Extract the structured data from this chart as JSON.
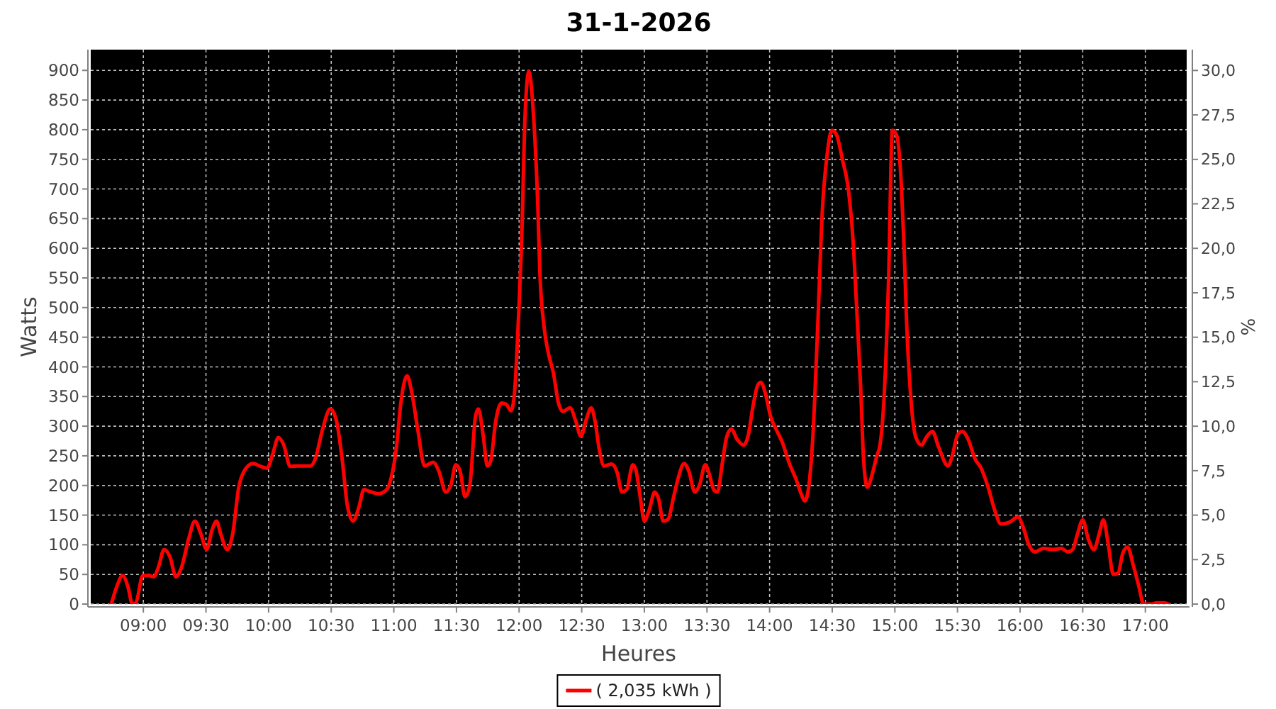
{
  "chart_data": {
    "type": "line",
    "title": "31-1-2026",
    "xlabel": "Heures",
    "ylabel": "Watts",
    "y2label": "%",
    "xlim": [
      8.58,
      17.33
    ],
    "xticks": [
      {
        "value": 9,
        "label": "09:00"
      },
      {
        "value": 9.5,
        "label": "09:30"
      },
      {
        "value": 10,
        "label": "10:00"
      },
      {
        "value": 10.5,
        "label": "10:30"
      },
      {
        "value": 11,
        "label": "11:00"
      },
      {
        "value": 11.5,
        "label": "11:30"
      },
      {
        "value": 12,
        "label": "12:00"
      },
      {
        "value": 12.5,
        "label": "12:30"
      },
      {
        "value": 13,
        "label": "13:00"
      },
      {
        "value": 13.5,
        "label": "13:30"
      },
      {
        "value": 14,
        "label": "14:00"
      },
      {
        "value": 14.5,
        "label": "14:30"
      },
      {
        "value": 15,
        "label": "15:00"
      },
      {
        "value": 15.5,
        "label": "15:30"
      },
      {
        "value": 16,
        "label": "16:00"
      },
      {
        "value": 16.5,
        "label": "16:30"
      },
      {
        "value": 17,
        "label": "17:00"
      }
    ],
    "ylim": [
      0,
      935
    ],
    "yticks": [
      0,
      50,
      100,
      150,
      200,
      250,
      300,
      350,
      400,
      450,
      500,
      550,
      600,
      650,
      700,
      750,
      800,
      850,
      900
    ],
    "y2lim": [
      0,
      31.17
    ],
    "y2ticks": [
      {
        "value": 0,
        "label": "0,0"
      },
      {
        "value": 2.5,
        "label": "2,5"
      },
      {
        "value": 5,
        "label": "5,0"
      },
      {
        "value": 7.5,
        "label": "7,5"
      },
      {
        "value": 10,
        "label": "10,0"
      },
      {
        "value": 12.5,
        "label": "12,5"
      },
      {
        "value": 15,
        "label": "15,0"
      },
      {
        "value": 17.5,
        "label": "17,5"
      },
      {
        "value": 20,
        "label": "20,0"
      },
      {
        "value": 22.5,
        "label": "22,5"
      },
      {
        "value": 25,
        "label": "25,0"
      },
      {
        "value": 27.5,
        "label": "27,5"
      },
      {
        "value": 30,
        "label": "30,0"
      }
    ],
    "grid": true,
    "legend": "bottom",
    "line_style": "solid",
    "series": [
      {
        "name": "( 2,035 kWh )",
        "color": "#ff0000",
        "x": [
          8.744,
          8.789,
          8.834,
          8.876,
          8.913,
          8.94,
          8.996,
          9.04,
          9.083,
          9.12,
          9.166,
          9.215,
          9.26,
          9.305,
          9.362,
          9.411,
          9.46,
          9.505,
          9.55,
          9.584,
          9.618,
          9.671,
          9.713,
          9.762,
          9.807,
          9.875,
          9.939,
          9.988,
          10.033,
          10.078,
          10.12,
          10.173,
          10.229,
          10.335,
          10.373,
          10.429,
          10.493,
          10.542,
          10.587,
          10.629,
          10.674,
          10.719,
          10.761,
          10.818,
          10.879,
          10.943,
          10.981,
          11.019,
          11.057,
          11.106,
          11.143,
          11.192,
          11.245,
          11.313,
          11.358,
          11.415,
          11.456,
          11.494,
          11.528,
          11.569,
          11.607,
          11.652,
          11.675,
          11.713,
          11.747,
          11.773,
          11.814,
          11.86,
          11.897,
          11.935,
          11.962,
          11.992,
          12.022,
          12.048,
          12.078,
          12.112,
          12.15,
          12.165,
          12.199,
          12.237,
          12.275,
          12.312,
          12.35,
          12.407,
          12.452,
          12.493,
          12.539,
          12.576,
          12.606,
          12.64,
          12.678,
          12.738,
          12.784,
          12.821,
          12.859,
          12.908,
          12.934,
          12.967,
          13.0,
          13.038,
          13.083,
          13.113,
          13.151,
          13.189,
          13.234,
          13.271,
          13.317,
          13.354,
          13.403,
          13.441,
          13.486,
          13.516,
          13.554,
          13.584,
          13.622,
          13.656,
          13.694,
          13.743,
          13.792,
          13.83,
          13.867,
          13.905,
          13.931,
          13.969,
          14.007,
          14.056,
          14.101,
          14.158,
          14.214,
          14.252,
          14.282,
          14.312,
          14.346,
          14.384,
          14.422,
          14.46,
          14.497,
          14.535,
          14.58,
          14.629,
          14.667,
          14.697,
          14.727,
          14.75,
          14.78,
          14.817,
          14.855,
          14.882,
          14.912,
          14.95,
          14.98,
          15.014,
          15.051,
          15.074,
          15.093,
          15.13,
          15.168,
          15.213,
          15.251,
          15.3,
          15.349,
          15.425,
          15.462,
          15.5,
          15.538,
          15.583,
          15.64,
          15.689,
          15.745,
          15.798,
          15.847,
          15.915,
          15.983,
          16.024,
          16.066,
          16.118,
          16.186,
          16.262,
          16.33,
          16.382,
          16.42,
          16.458,
          16.5,
          16.544,
          16.59,
          16.631,
          16.665,
          16.703,
          16.744,
          16.782,
          16.82,
          16.858,
          16.903,
          16.948,
          16.986,
          17.054,
          17.091,
          17.148,
          17.186
        ],
        "values": [
          0,
          30,
          48,
          30,
          0,
          2,
          48,
          48,
          46,
          62,
          92,
          78,
          46,
          62,
          110,
          140,
          118,
          92,
          126,
          140,
          118,
          92,
          118,
          197,
          225,
          237,
          232,
          229,
          253,
          281,
          269,
          232,
          233,
          233,
          245,
          293,
          329,
          309,
          245,
          166,
          140,
          162,
          193,
          189,
          186,
          193,
          215,
          261,
          341,
          385,
          357,
          293,
          233,
          239,
          225,
          189,
          201,
          235,
          225,
          181,
          201,
          317,
          329,
          285,
          233,
          241,
          309,
          339,
          337,
          326,
          353,
          468,
          627,
          826,
          898,
          834,
          667,
          564,
          468,
          420,
          389,
          341,
          325,
          331,
          309,
          283,
          313,
          331,
          309,
          261,
          233,
          236,
          221,
          189,
          193,
          235,
          225,
          181,
          140,
          158,
          189,
          178,
          140,
          143,
          181,
          213,
          237,
          225,
          189,
          201,
          235,
          221,
          193,
          189,
          237,
          281,
          295,
          277,
          268,
          285,
          333,
          369,
          374,
          353,
          317,
          293,
          273,
          237,
          209,
          186,
          174,
          197,
          285,
          468,
          667,
          759,
          799,
          791,
          751,
          699,
          611,
          492,
          365,
          245,
          197,
          217,
          249,
          269,
          341,
          548,
          799,
          791,
          710,
          600,
          480,
          341,
          281,
          268,
          281,
          291,
          265,
          233,
          253,
          285,
          291,
          279,
          245,
          229,
          197,
          158,
          135,
          138,
          147,
          130,
          102,
          88,
          94,
          92,
          94,
          88,
          92,
          118,
          142,
          110,
          92,
          118,
          142,
          102,
          50,
          52,
          86,
          96,
          66,
          30,
          0,
          0,
          2,
          2,
          0
        ]
      }
    ]
  }
}
